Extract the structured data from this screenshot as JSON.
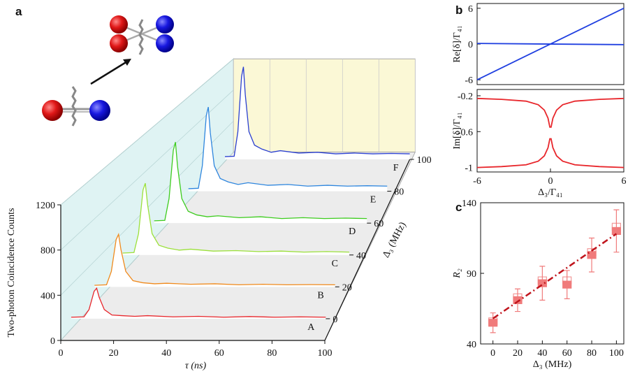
{
  "chart_data": [
    {
      "type": "waterfall",
      "panel": "a",
      "ylabel": "Two-photon Coincidence Counts",
      "xlabel": "τ (ns)",
      "zlabel": "Δ₃ (MHz)",
      "xlim": [
        0,
        100
      ],
      "xticks": [
        0,
        20,
        40,
        60,
        80,
        100
      ],
      "ylim": [
        0,
        1200
      ],
      "yticks": [
        0,
        400,
        800,
        1200
      ],
      "zlim": [
        0,
        100
      ],
      "zticks": [
        0,
        20,
        40,
        60,
        80,
        100
      ],
      "x": [
        0,
        5,
        7,
        9,
        10,
        11,
        13,
        16,
        20,
        25,
        30,
        40,
        50,
        60,
        70,
        80,
        90,
        100
      ],
      "series": [
        {
          "name": "A",
          "z": 0,
          "color": "#e8262b",
          "values": [
            14,
            17,
            84,
            252,
            280,
            196,
            84,
            34,
            28,
            22,
            28,
            17,
            22,
            14,
            20,
            14,
            17,
            14
          ]
        },
        {
          "name": "B",
          "z": 20,
          "color": "#f08a1c",
          "values": [
            15,
            20,
            150,
            460,
            510,
            360,
            150,
            60,
            40,
            30,
            35,
            25,
            30,
            20,
            25,
            20,
            22,
            20
          ]
        },
        {
          "name": "C",
          "z": 40,
          "color": "#9be03a",
          "values": [
            20,
            25,
            220,
            670,
            740,
            520,
            220,
            100,
            70,
            50,
            60,
            40,
            45,
            35,
            40,
            30,
            35,
            30
          ]
        },
        {
          "name": "D",
          "z": 60,
          "color": "#3dcc1e",
          "values": [
            25,
            30,
            270,
            800,
            890,
            620,
            270,
            130,
            90,
            70,
            80,
            60,
            70,
            50,
            60,
            50,
            55,
            50
          ]
        },
        {
          "name": "E",
          "z": 80,
          "color": "#2e86de",
          "values": [
            30,
            35,
            300,
            890,
            990,
            690,
            300,
            150,
            110,
            80,
            100,
            70,
            80,
            60,
            70,
            60,
            65,
            60
          ]
        },
        {
          "name": "F",
          "z": 100,
          "color": "#2a3fd0",
          "values": [
            35,
            40,
            350,
            1050,
            1170,
            820,
            350,
            180,
            130,
            90,
            110,
            80,
            90,
            70,
            80,
            70,
            75,
            70
          ]
        }
      ]
    },
    {
      "type": "line",
      "panel": "b",
      "ylabel": "Re[δ]/Γ₄₁",
      "xlim": [
        -6,
        6
      ],
      "ylim": [
        -6.8,
        6.8
      ],
      "yticks": [
        -6,
        0,
        6
      ],
      "x": [
        -6,
        6
      ],
      "series": [
        {
          "color": "#1f3fe0",
          "values": [
            -6,
            6
          ]
        },
        {
          "color": "#1f3fe0",
          "values": [
            0.1,
            -0.1
          ]
        }
      ]
    },
    {
      "type": "line",
      "ylabel": "Im[δ]/Γ₄₁",
      "xlabel": "Δ₃/Γ₄₁",
      "xlim": [
        -6,
        6
      ],
      "xticks": [
        -6,
        0,
        6
      ],
      "ylim": [
        -1.05,
        -0.13
      ],
      "yticks": [
        -1,
        -0.6,
        -0.2
      ],
      "x": [
        -6,
        -4,
        -2,
        -1,
        -0.5,
        -0.2,
        -0.05,
        0.05,
        0.2,
        0.5,
        1,
        2,
        4,
        6
      ],
      "series": [
        {
          "color": "#e8262b",
          "values": [
            -0.23,
            -0.24,
            -0.26,
            -0.3,
            -0.36,
            -0.45,
            -0.55,
            -0.55,
            -0.45,
            -0.36,
            -0.3,
            -0.26,
            -0.24,
            -0.23
          ]
        },
        {
          "color": "#e8262b",
          "values": [
            -1,
            -0.99,
            -0.97,
            -0.93,
            -0.87,
            -0.78,
            -0.68,
            -0.68,
            -0.78,
            -0.87,
            -0.93,
            -0.97,
            -0.99,
            -1
          ]
        }
      ]
    },
    {
      "type": "errorbar",
      "panel": "c",
      "ylabel": "R₂",
      "xlabel": "Δ₃ (MHz)",
      "xlim": [
        -10,
        106
      ],
      "xticks": [
        0,
        20,
        40,
        60,
        80,
        100
      ],
      "ylim": [
        40,
        140
      ],
      "yticks": [
        40,
        90,
        140
      ],
      "x": [
        0,
        20,
        40,
        60,
        80,
        100
      ],
      "series": [
        {
          "marker": "hollow",
          "color": "#f29a9a",
          "values": [
            56,
            73,
            85,
            85,
            105,
            123
          ]
        },
        {
          "marker": "filled",
          "color": "#f07b7b",
          "values": [
            55,
            71,
            83,
            82,
            103,
            120
          ],
          "errors": [
            7,
            8,
            12,
            10,
            12,
            15
          ]
        },
        {
          "marker": "dashdot",
          "color": "#c0141c",
          "x": [
            0,
            100
          ],
          "values": [
            58,
            118
          ]
        }
      ]
    }
  ]
}
